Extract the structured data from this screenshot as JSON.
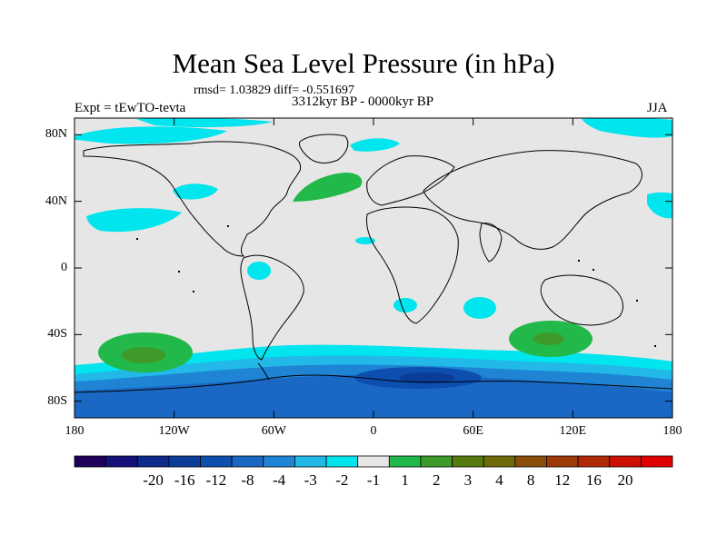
{
  "title": "Mean Sea Level Pressure (in hPa)",
  "stats": "rmsd= 1.03829 diff= -0.551697",
  "experiment": "Expt = tEwTO-tevta",
  "period": "3312kyr BP - 0000kyr BP",
  "season": "JJA",
  "map": {
    "lon_range": [
      -180,
      180
    ],
    "lat_range": [
      -90,
      90
    ],
    "lat_ticks": [
      {
        "label": "80N",
        "lat": 80
      },
      {
        "label": "40N",
        "lat": 40
      },
      {
        "label": "0",
        "lat": 0
      },
      {
        "label": "40S",
        "lat": -40
      },
      {
        "label": "80S",
        "lat": -80
      }
    ],
    "lon_ticks": [
      {
        "label": "180",
        "lon": -180
      },
      {
        "label": "120W",
        "lon": -120
      },
      {
        "label": "60W",
        "lon": -60
      },
      {
        "label": "0",
        "lon": 0
      },
      {
        "label": "60E",
        "lon": 60
      },
      {
        "label": "120E",
        "lon": 120
      },
      {
        "label": "180",
        "lon": 180
      }
    ],
    "background_color": "#e6e6e6"
  },
  "colorbar": {
    "colors": [
      "#20005a",
      "#14127a",
      "#0d2a8c",
      "#0a3c98",
      "#0d4fae",
      "#1a68c4",
      "#1f84d4",
      "#22b8e8",
      "#00e5ee",
      "#e6e6e6",
      "#22b84a",
      "#3f9a2c",
      "#567a12",
      "#6e6a08",
      "#8a4e0a",
      "#9c3a08",
      "#b02a06",
      "#cc1004",
      "#e00000"
    ],
    "labels": [
      "-20",
      "-16",
      "-12",
      "-8",
      "-4",
      "-3",
      "-2",
      "-1",
      "1",
      "2",
      "3",
      "4",
      "8",
      "12",
      "16",
      "20"
    ]
  }
}
